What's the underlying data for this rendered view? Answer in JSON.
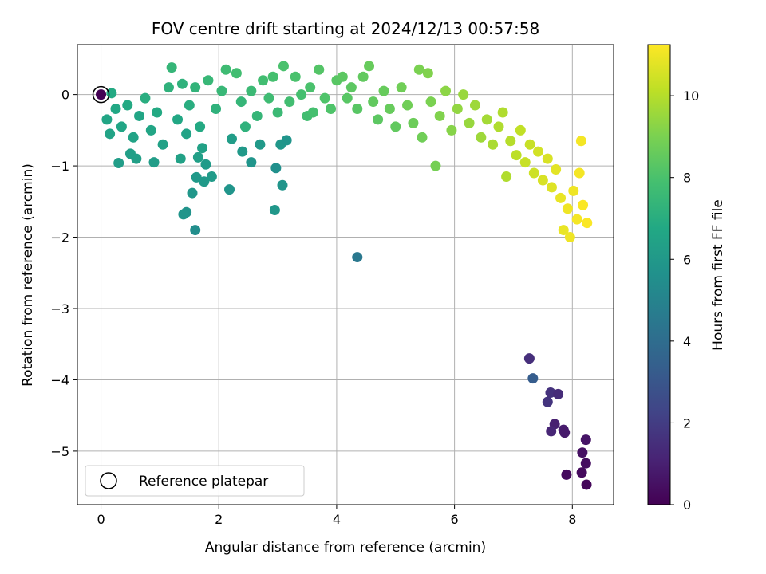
{
  "chart_data": {
    "type": "scatter",
    "title": "FOV centre drift starting at 2024/12/13 00:57:58",
    "xlabel": "Angular distance from reference (arcmin)",
    "ylabel": "Rotation from reference (arcmin)",
    "xlim": [
      -0.4,
      8.7
    ],
    "ylim": [
      -5.75,
      0.7
    ],
    "xticks": [
      0,
      2,
      4,
      6,
      8
    ],
    "yticks": [
      0,
      -1,
      -2,
      -3,
      -4,
      -5
    ],
    "xtick_labels": [
      "0",
      "2",
      "4",
      "6",
      "8"
    ],
    "ytick_labels": [
      "0",
      "−1",
      "−2",
      "−3",
      "−4",
      "−5"
    ],
    "grid": true,
    "colormap": "viridis",
    "colorbar": {
      "label": "Hours from first FF file",
      "range": [
        0,
        11.25
      ],
      "ticks": [
        0,
        2,
        4,
        6,
        8,
        10
      ],
      "tick_labels": [
        "0",
        "2",
        "4",
        "6",
        "8",
        "10"
      ]
    },
    "legend": {
      "position": "lower-left",
      "label": "Reference platepar",
      "marker": "hollow-circle"
    },
    "reference_point": {
      "x": 0.0,
      "y": 0.0,
      "hours": 0.0
    },
    "points": [
      {
        "x": 7.27,
        "y": -3.7,
        "h": 1.5
      },
      {
        "x": 7.33,
        "y": -3.98,
        "h": 3.3
      },
      {
        "x": 7.58,
        "y": -4.31,
        "h": 1.7
      },
      {
        "x": 7.63,
        "y": -4.18,
        "h": 1.6
      },
      {
        "x": 7.76,
        "y": -4.2,
        "h": 1.4
      },
      {
        "x": 7.7,
        "y": -4.62,
        "h": 1.0
      },
      {
        "x": 7.64,
        "y": -4.72,
        "h": 1.2
      },
      {
        "x": 7.85,
        "y": -4.7,
        "h": 0.9
      },
      {
        "x": 7.87,
        "y": -4.74,
        "h": 0.8
      },
      {
        "x": 8.23,
        "y": -4.84,
        "h": 0.6
      },
      {
        "x": 8.17,
        "y": -5.02,
        "h": 0.5
      },
      {
        "x": 8.23,
        "y": -5.17,
        "h": 0.4
      },
      {
        "x": 8.16,
        "y": -5.3,
        "h": 0.3
      },
      {
        "x": 7.9,
        "y": -5.33,
        "h": 0.3
      },
      {
        "x": 8.24,
        "y": -5.47,
        "h": 0.2
      },
      {
        "x": 4.35,
        "y": -2.28,
        "h": 4.5
      },
      {
        "x": 1.6,
        "y": -1.9,
        "h": 5.5
      },
      {
        "x": 1.45,
        "y": -1.65,
        "h": 5.7
      },
      {
        "x": 1.4,
        "y": -1.68,
        "h": 5.8
      },
      {
        "x": 1.55,
        "y": -1.38,
        "h": 5.9
      },
      {
        "x": 1.75,
        "y": -1.22,
        "h": 6.0
      },
      {
        "x": 1.62,
        "y": -1.16,
        "h": 6.0
      },
      {
        "x": 1.88,
        "y": -1.15,
        "h": 6.1
      },
      {
        "x": 1.78,
        "y": -0.98,
        "h": 6.1
      },
      {
        "x": 2.18,
        "y": -1.33,
        "h": 5.8
      },
      {
        "x": 2.95,
        "y": -1.62,
        "h": 5.9
      },
      {
        "x": 3.08,
        "y": -1.27,
        "h": 5.8
      },
      {
        "x": 2.97,
        "y": -1.03,
        "h": 5.6
      },
      {
        "x": 2.55,
        "y": -0.95,
        "h": 5.8
      },
      {
        "x": 2.4,
        "y": -0.8,
        "h": 6.0
      },
      {
        "x": 2.22,
        "y": -0.62,
        "h": 6.2
      },
      {
        "x": 2.7,
        "y": -0.7,
        "h": 6.0
      },
      {
        "x": 3.05,
        "y": -0.7,
        "h": 5.9
      },
      {
        "x": 3.15,
        "y": -0.64,
        "h": 5.8
      },
      {
        "x": 1.65,
        "y": -0.88,
        "h": 6.3
      },
      {
        "x": 1.72,
        "y": -0.75,
        "h": 6.4
      },
      {
        "x": 1.35,
        "y": -0.9,
        "h": 6.4
      },
      {
        "x": 0.5,
        "y": -0.83,
        "h": 6.3
      },
      {
        "x": 0.3,
        "y": -0.96,
        "h": 6.2
      },
      {
        "x": 0.9,
        "y": -0.95,
        "h": 6.2
      },
      {
        "x": 0.6,
        "y": -0.9,
        "h": 6.3
      },
      {
        "x": 1.45,
        "y": -0.55,
        "h": 6.5
      },
      {
        "x": 0.1,
        "y": -0.35,
        "h": 6.6
      },
      {
        "x": 0.15,
        "y": -0.55,
        "h": 6.5
      },
      {
        "x": 0.18,
        "y": 0.02,
        "h": 6.8
      },
      {
        "x": 0.25,
        "y": -0.2,
        "h": 6.7
      },
      {
        "x": 0.35,
        "y": -0.45,
        "h": 6.6
      },
      {
        "x": 0.45,
        "y": -0.15,
        "h": 6.8
      },
      {
        "x": 0.55,
        "y": -0.6,
        "h": 6.5
      },
      {
        "x": 0.65,
        "y": -0.3,
        "h": 6.6
      },
      {
        "x": 0.75,
        "y": -0.05,
        "h": 7.0
      },
      {
        "x": 0.85,
        "y": -0.5,
        "h": 6.6
      },
      {
        "x": 0.95,
        "y": -0.25,
        "h": 6.8
      },
      {
        "x": 1.05,
        "y": -0.7,
        "h": 6.4
      },
      {
        "x": 1.15,
        "y": 0.1,
        "h": 7.2
      },
      {
        "x": 1.2,
        "y": 0.38,
        "h": 7.4
      },
      {
        "x": 1.3,
        "y": -0.35,
        "h": 6.7
      },
      {
        "x": 1.38,
        "y": 0.15,
        "h": 7.2
      },
      {
        "x": 1.5,
        "y": -0.15,
        "h": 7.0
      },
      {
        "x": 1.6,
        "y": 0.1,
        "h": 7.3
      },
      {
        "x": 1.68,
        "y": -0.45,
        "h": 6.8
      },
      {
        "x": 1.82,
        "y": 0.2,
        "h": 7.5
      },
      {
        "x": 1.95,
        "y": -0.2,
        "h": 7.2
      },
      {
        "x": 2.05,
        "y": 0.05,
        "h": 7.5
      },
      {
        "x": 2.12,
        "y": 0.35,
        "h": 7.7
      },
      {
        "x": 2.3,
        "y": 0.3,
        "h": 7.8
      },
      {
        "x": 2.38,
        "y": -0.1,
        "h": 7.4
      },
      {
        "x": 2.45,
        "y": -0.45,
        "h": 7.2
      },
      {
        "x": 2.55,
        "y": 0.05,
        "h": 7.6
      },
      {
        "x": 2.65,
        "y": -0.3,
        "h": 7.4
      },
      {
        "x": 2.75,
        "y": 0.2,
        "h": 7.8
      },
      {
        "x": 2.85,
        "y": -0.05,
        "h": 7.7
      },
      {
        "x": 2.92,
        "y": 0.25,
        "h": 7.9
      },
      {
        "x": 3.0,
        "y": -0.25,
        "h": 7.6
      },
      {
        "x": 3.1,
        "y": 0.4,
        "h": 8.0
      },
      {
        "x": 3.2,
        "y": -0.1,
        "h": 7.8
      },
      {
        "x": 3.3,
        "y": 0.25,
        "h": 8.0
      },
      {
        "x": 3.4,
        "y": 0.0,
        "h": 7.9
      },
      {
        "x": 3.5,
        "y": -0.3,
        "h": 7.8
      },
      {
        "x": 3.55,
        "y": 0.1,
        "h": 8.0
      },
      {
        "x": 3.6,
        "y": -0.25,
        "h": 7.9
      },
      {
        "x": 3.7,
        "y": 0.35,
        "h": 8.2
      },
      {
        "x": 3.8,
        "y": -0.05,
        "h": 8.1
      },
      {
        "x": 3.9,
        "y": -0.2,
        "h": 8.1
      },
      {
        "x": 4.0,
        "y": 0.2,
        "h": 8.3
      },
      {
        "x": 4.1,
        "y": 0.25,
        "h": 8.4
      },
      {
        "x": 4.18,
        "y": -0.05,
        "h": 8.3
      },
      {
        "x": 4.25,
        "y": 0.1,
        "h": 8.4
      },
      {
        "x": 4.35,
        "y": -0.2,
        "h": 8.3
      },
      {
        "x": 4.45,
        "y": 0.25,
        "h": 8.5
      },
      {
        "x": 4.55,
        "y": 0.4,
        "h": 8.6
      },
      {
        "x": 4.62,
        "y": -0.1,
        "h": 8.5
      },
      {
        "x": 4.7,
        "y": -0.35,
        "h": 8.4
      },
      {
        "x": 4.8,
        "y": 0.05,
        "h": 8.6
      },
      {
        "x": 4.9,
        "y": -0.2,
        "h": 8.6
      },
      {
        "x": 5.0,
        "y": -0.45,
        "h": 8.5
      },
      {
        "x": 5.1,
        "y": 0.1,
        "h": 8.8
      },
      {
        "x": 5.2,
        "y": -0.15,
        "h": 8.8
      },
      {
        "x": 5.3,
        "y": -0.4,
        "h": 8.7
      },
      {
        "x": 5.4,
        "y": 0.35,
        "h": 9.0
      },
      {
        "x": 5.45,
        "y": -0.6,
        "h": 8.8
      },
      {
        "x": 5.55,
        "y": 0.3,
        "h": 9.1
      },
      {
        "x": 5.6,
        "y": -0.1,
        "h": 9.0
      },
      {
        "x": 5.68,
        "y": -1.0,
        "h": 8.9
      },
      {
        "x": 5.75,
        "y": -0.3,
        "h": 9.1
      },
      {
        "x": 5.85,
        "y": 0.05,
        "h": 9.3
      },
      {
        "x": 5.95,
        "y": -0.5,
        "h": 9.2
      },
      {
        "x": 6.05,
        "y": -0.2,
        "h": 9.4
      },
      {
        "x": 6.15,
        "y": 0.0,
        "h": 9.5
      },
      {
        "x": 6.25,
        "y": -0.4,
        "h": 9.5
      },
      {
        "x": 6.35,
        "y": -0.15,
        "h": 9.6
      },
      {
        "x": 6.45,
        "y": -0.6,
        "h": 9.6
      },
      {
        "x": 6.55,
        "y": -0.35,
        "h": 9.7
      },
      {
        "x": 6.65,
        "y": -0.7,
        "h": 9.8
      },
      {
        "x": 6.75,
        "y": -0.45,
        "h": 9.9
      },
      {
        "x": 6.82,
        "y": -0.25,
        "h": 9.9
      },
      {
        "x": 6.88,
        "y": -1.15,
        "h": 9.9
      },
      {
        "x": 6.95,
        "y": -0.65,
        "h": 10.0
      },
      {
        "x": 7.05,
        "y": -0.85,
        "h": 10.1
      },
      {
        "x": 7.12,
        "y": -0.5,
        "h": 10.2
      },
      {
        "x": 7.2,
        "y": -0.95,
        "h": 10.3
      },
      {
        "x": 7.28,
        "y": -0.7,
        "h": 10.3
      },
      {
        "x": 7.35,
        "y": -1.1,
        "h": 10.4
      },
      {
        "x": 7.42,
        "y": -0.8,
        "h": 10.5
      },
      {
        "x": 7.5,
        "y": -1.2,
        "h": 10.6
      },
      {
        "x": 7.58,
        "y": -0.9,
        "h": 10.6
      },
      {
        "x": 7.65,
        "y": -1.3,
        "h": 10.7
      },
      {
        "x": 7.72,
        "y": -1.05,
        "h": 10.8
      },
      {
        "x": 7.8,
        "y": -1.45,
        "h": 10.9
      },
      {
        "x": 7.85,
        "y": -1.9,
        "h": 10.9
      },
      {
        "x": 7.92,
        "y": -1.6,
        "h": 11.0
      },
      {
        "x": 7.96,
        "y": -2.0,
        "h": 11.0
      },
      {
        "x": 8.02,
        "y": -1.35,
        "h": 11.0
      },
      {
        "x": 8.08,
        "y": -1.75,
        "h": 11.1
      },
      {
        "x": 8.12,
        "y": -1.1,
        "h": 11.1
      },
      {
        "x": 8.15,
        "y": -0.65,
        "h": 11.1
      },
      {
        "x": 8.18,
        "y": -1.55,
        "h": 11.2
      },
      {
        "x": 8.25,
        "y": -1.8,
        "h": 11.2
      }
    ]
  }
}
